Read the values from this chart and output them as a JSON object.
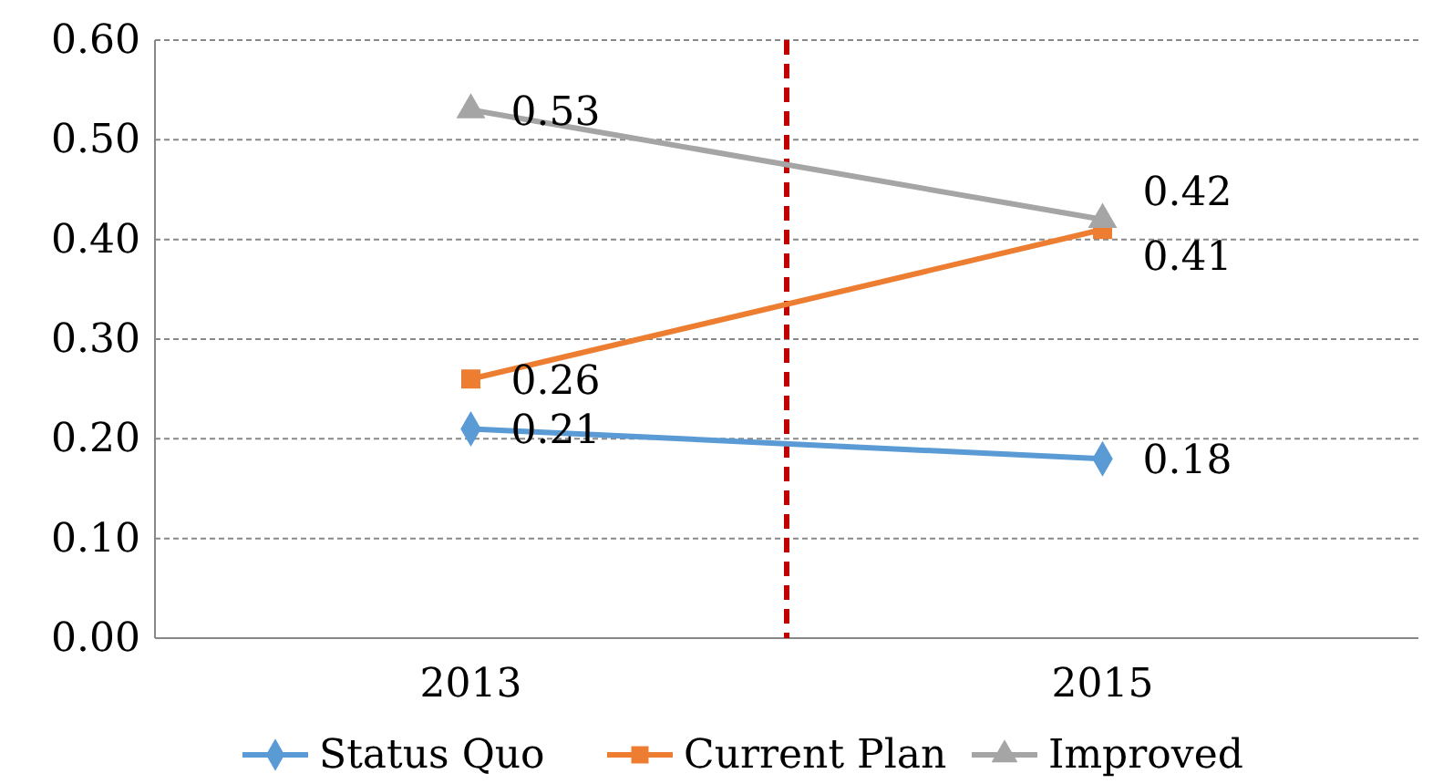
{
  "chart_data": {
    "type": "line",
    "x": [
      2013,
      2015
    ],
    "xlim": [
      2012,
      2016
    ],
    "xticks": [
      2013,
      2015
    ],
    "ylim": [
      0,
      0.6
    ],
    "yticks": [
      {
        "value": 0,
        "label": "0.00"
      },
      {
        "value": 0.1,
        "label": "0.10"
      },
      {
        "value": 0.2,
        "label": "0.20"
      },
      {
        "value": 0.3,
        "label": "0.30"
      },
      {
        "value": 0.4,
        "label": "0.40"
      },
      {
        "value": 0.5,
        "label": "0.50"
      },
      {
        "value": 0.6,
        "label": "0.60"
      }
    ],
    "grid": "y",
    "legend": "bottom",
    "data_labels": true,
    "series": [
      {
        "name": "Status Quo",
        "color": "#5b9bd5",
        "marker": "diamond",
        "values": [
          0.21,
          0.18
        ]
      },
      {
        "name": "Current Plan",
        "color": "#ed7d31",
        "marker": "square",
        "values": [
          0.26,
          0.41
        ]
      },
      {
        "name": "Improved",
        "color": "#a5a5a5",
        "marker": "triangle",
        "values": [
          0.53,
          0.42
        ]
      }
    ],
    "ref_lines": [
      {
        "axis": "x",
        "value": 2014,
        "color": "#c00000",
        "line_style": "dashed"
      }
    ]
  }
}
